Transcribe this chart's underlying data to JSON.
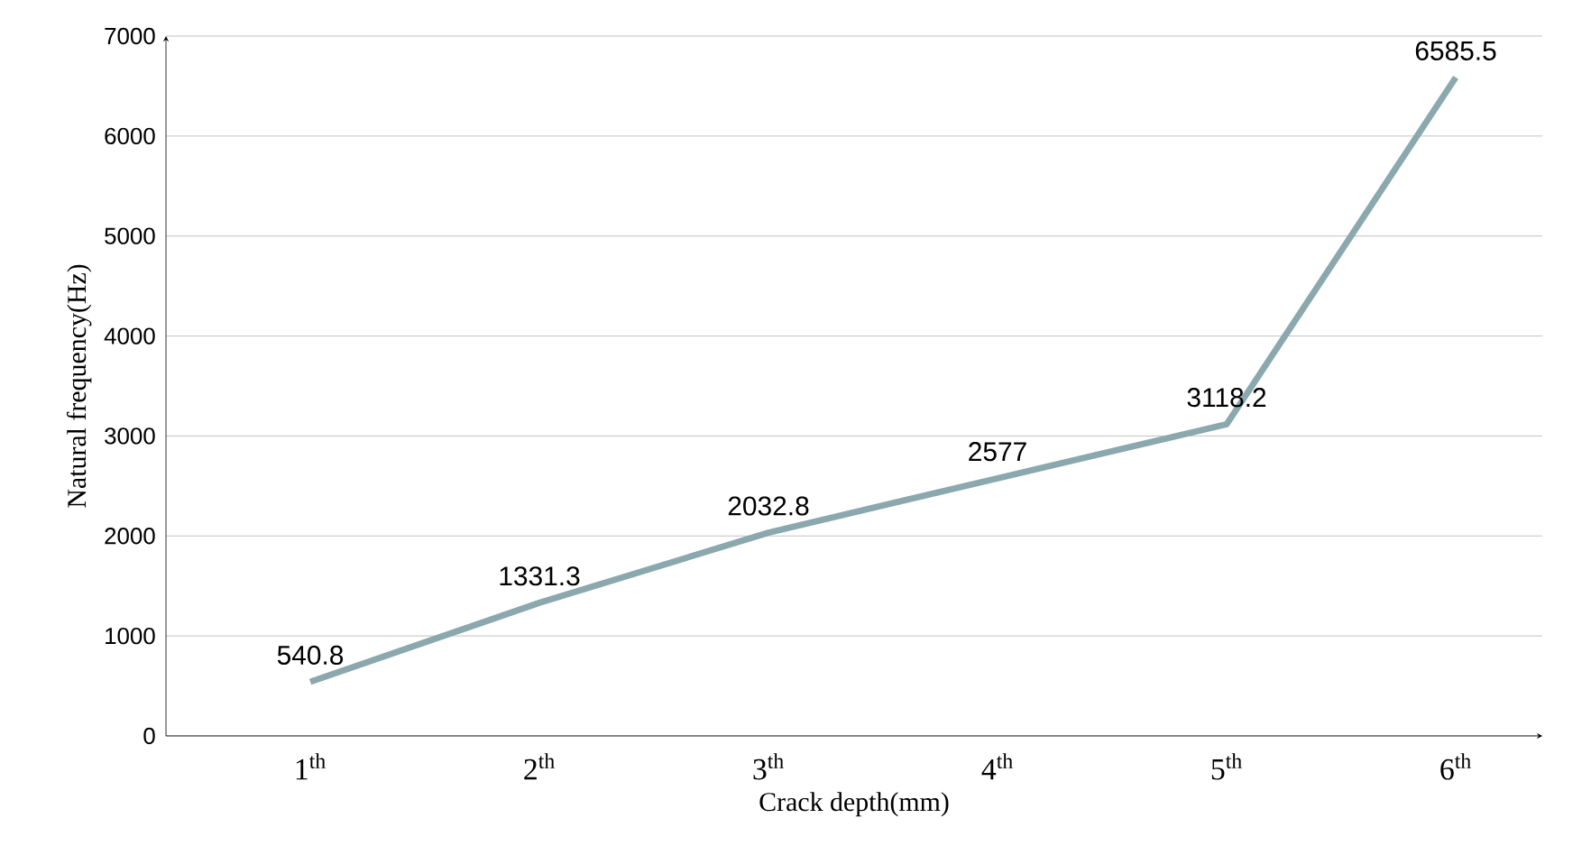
{
  "chart_data": {
    "type": "line",
    "xlabel": "Crack depth(mm)",
    "ylabel": "Natural frequency(Hz)",
    "categories": [
      "1$^{th}$",
      "2$^{th}$",
      "3$^{th}$",
      "4$^{th}$",
      "5$^{th}$",
      "6$^{th}$"
    ],
    "values": [
      540.8,
      1331.3,
      2032.8,
      2577,
      3118.2,
      6585.5
    ],
    "color": "#8aa8ad",
    "ylim": [
      0,
      7000
    ],
    "yticks": [
      0,
      1000,
      2000,
      3000,
      4000,
      5000,
      6000,
      7000
    ],
    "grid": "y",
    "data_labels": true,
    "marker": "none",
    "line_style": "solid"
  }
}
